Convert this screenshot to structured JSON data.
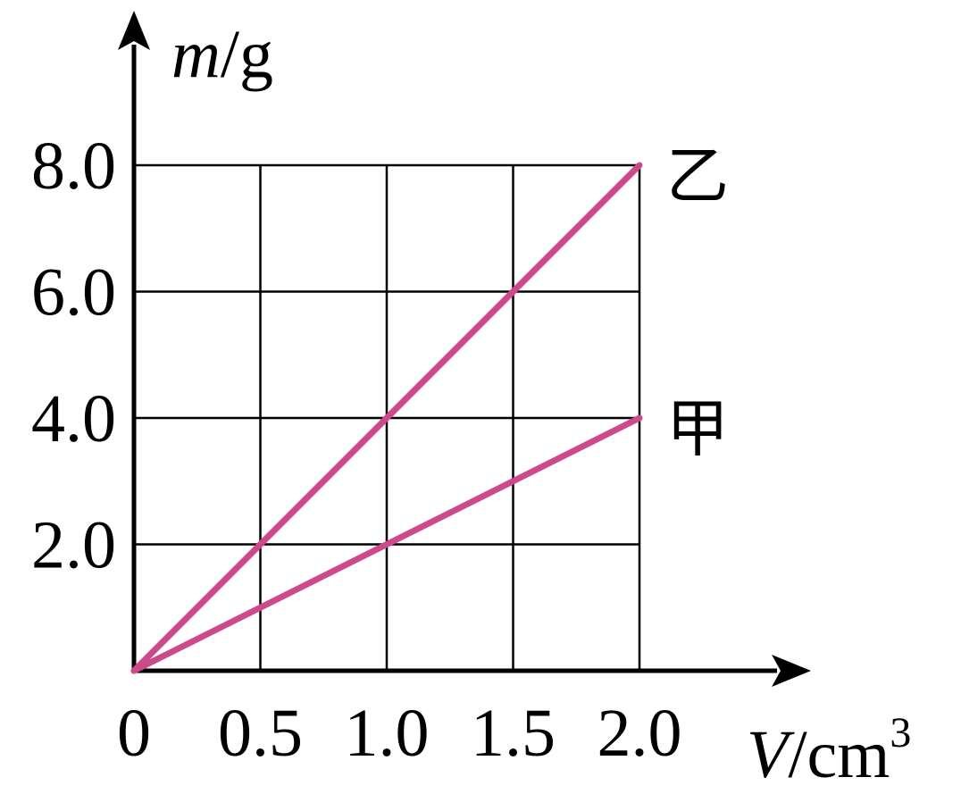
{
  "chart_data": {
    "type": "line",
    "x_ticks": [
      "0",
      "0.5",
      "1.0",
      "1.5",
      "2.0"
    ],
    "y_ticks": [
      "2.0",
      "4.0",
      "6.0",
      "8.0"
    ],
    "xlim": [
      0,
      2.0
    ],
    "ylim": [
      0,
      8.0
    ],
    "grid": true,
    "x_axis": {
      "symbol": "V",
      "unit": "/cm",
      "unit_exp": "3"
    },
    "y_axis": {
      "symbol": "m",
      "unit": "/g"
    },
    "line_color": "#cc4a8a",
    "series": [
      {
        "name": "乙",
        "x": [
          0,
          0.5,
          1.0,
          1.5,
          2.0
        ],
        "y": [
          0,
          2.0,
          4.0,
          6.0,
          8.0
        ]
      },
      {
        "name": "甲",
        "x": [
          0,
          0.5,
          1.0,
          1.5,
          2.0
        ],
        "y": [
          0,
          1.0,
          2.0,
          3.0,
          4.0
        ]
      }
    ]
  }
}
